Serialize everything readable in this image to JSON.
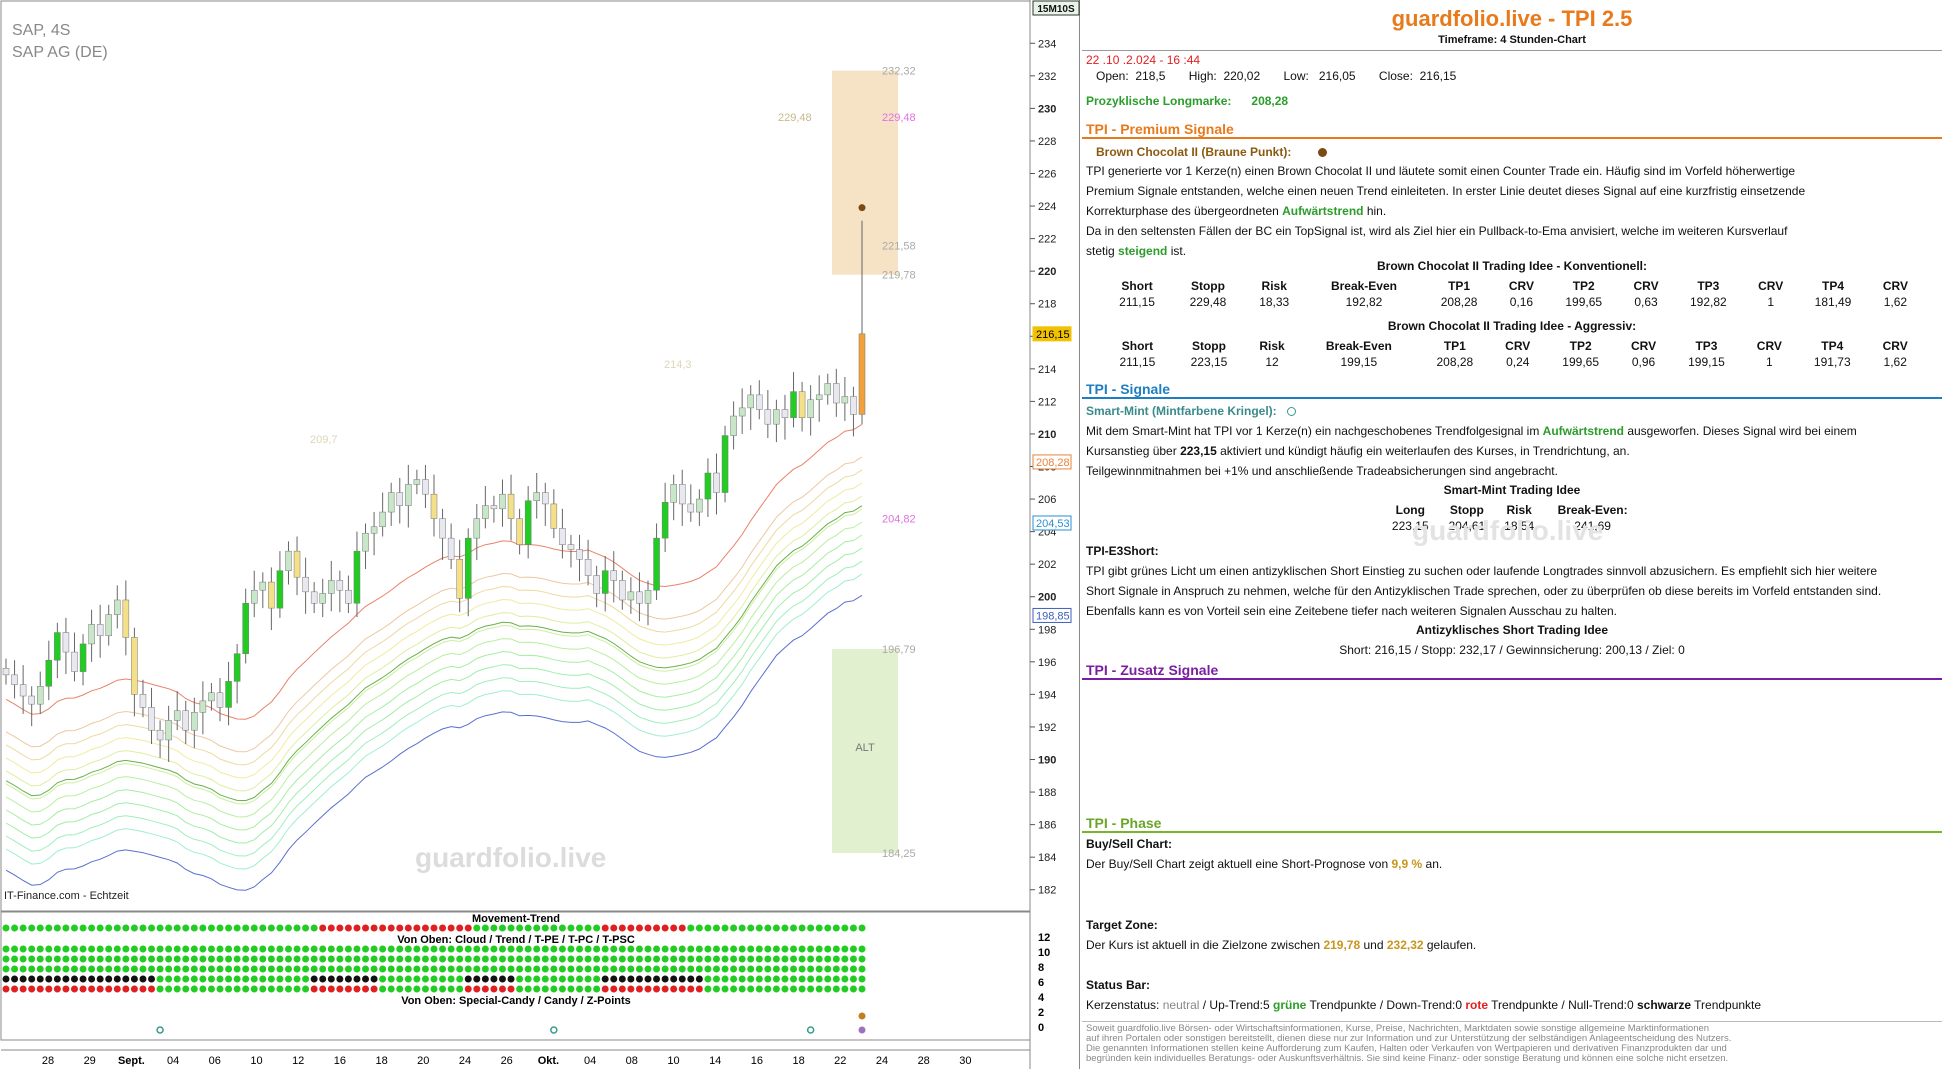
{
  "chart_header": {
    "symbol": "SAP, 4S",
    "name": "SAP AG (DE)",
    "timeframe_badge": "15M10S",
    "source": "IT-Finance.com - Echtzeit",
    "watermark": "guardfolio.live",
    "footer_watermark": "guardfolio.live"
  },
  "colors": {
    "brand": "#e87a1c",
    "premium_line": "#e87a1c",
    "signale_line": "#1f7ec2",
    "zusatz_line": "#7b1fa2",
    "phase_line": "#7ab32e",
    "bull": "#22cc22",
    "bear_candle": "#f5e08a",
    "price_label": "#f2c200"
  },
  "chart_data": {
    "type": "candlestick",
    "ylim": [
      181,
      235
    ],
    "y_ticks": [
      182,
      184,
      186,
      188,
      190,
      192,
      194,
      196,
      198,
      200,
      202,
      204,
      206,
      208,
      210,
      212,
      214,
      216,
      218,
      220,
      222,
      224,
      226,
      228,
      230,
      232,
      234
    ],
    "x_ticks": [
      "28",
      "29",
      "Sept.",
      "04",
      "06",
      "10",
      "12",
      "16",
      "18",
      "20",
      "24",
      "26",
      "Okt.",
      "04",
      "08",
      "10",
      "14",
      "16",
      "18",
      "22",
      "24",
      "28",
      "30"
    ],
    "price_labels": [
      {
        "value": 216.15,
        "text": "216,15",
        "color": "#f2c200"
      },
      {
        "value": 208.28,
        "text": "208,28",
        "color": "#e8823a"
      },
      {
        "value": 204.53,
        "text": "204,53",
        "color": "#2a8fd4"
      },
      {
        "value": 198.85,
        "text": "198,85",
        "color": "#3b5fbf"
      }
    ],
    "zone_labels": [
      {
        "value": 232.32,
        "text": "232,32",
        "color": "#aaa"
      },
      {
        "value": 229.48,
        "text": "229,48",
        "color": "#e070e0"
      },
      {
        "value": 221.58,
        "text": "221,58",
        "color": "#aaa"
      },
      {
        "value": 219.78,
        "text": "219,78",
        "color": "#aaa"
      },
      {
        "value": 204.82,
        "text": "204,82",
        "color": "#e070e0"
      },
      {
        "value": 196.79,
        "text": "196,79",
        "color": "#aaa"
      },
      {
        "value": 184.25,
        "text": "184,25",
        "color": "#aaa"
      }
    ],
    "faint_labels": [
      {
        "value": 229.48,
        "text": "229,48"
      },
      {
        "value": 214.3,
        "text": "214,3"
      },
      {
        "value": 209.7,
        "text": "209,7"
      }
    ],
    "zones": {
      "target_top": 232.32,
      "target_bottom": 219.78,
      "alt_top": 196.79,
      "alt_bottom": 184.25,
      "alt_label": "ALT"
    },
    "closes": [
      195.2,
      194.6,
      193.9,
      193.4,
      194.5,
      196.1,
      197.8,
      196.6,
      195.4,
      197.1,
      198.3,
      197.6,
      198.9,
      199.8,
      197.5,
      194.0,
      193.2,
      191.8,
      191.2,
      192.4,
      193.0,
      191.8,
      192.9,
      193.6,
      194.1,
      193.2,
      194.8,
      196.5,
      199.6,
      200.4,
      200.9,
      199.3,
      201.6,
      202.8,
      201.2,
      200.3,
      199.6,
      200.2,
      201.0,
      200.4,
      199.6,
      202.8,
      203.9,
      204.3,
      205.2,
      206.4,
      205.6,
      206.9,
      207.2,
      206.3,
      204.8,
      203.6,
      202.3,
      199.9,
      203.6,
      204.8,
      205.6,
      205.4,
      206.3,
      204.8,
      203.2,
      205.9,
      206.4,
      205.7,
      204.2,
      203.2,
      202.9,
      202.3,
      201.3,
      200.2,
      201.6,
      201.0,
      199.8,
      200.3,
      199.6,
      200.4,
      203.6,
      205.8,
      206.9,
      205.7,
      205.2,
      206.0,
      207.6,
      206.4,
      209.9,
      211.1,
      211.6,
      212.4,
      211.5,
      210.6,
      211.5,
      211.0,
      212.6,
      211.0,
      212.1,
      212.4,
      213.1,
      211.9,
      212.3,
      211.2,
      216.15
    ],
    "premium_marker": {
      "value": 223.9,
      "text": "Brown Chocolat II"
    }
  },
  "movement_trend": {
    "title": "Movement-Trend",
    "subtitle1": "Von Oben: Cloud / Trend / T-PE / T-PC / T-PSC",
    "subtitle2": "Von Oben: Special-Candy / Candy / Z-Points",
    "right_ticks": [
      "12",
      "10",
      "8",
      "6",
      "4",
      "2",
      "0"
    ]
  },
  "info": {
    "brand": "guardfolio.live - TPI 2.5",
    "timeframe": "Timeframe: 4 Stunden-Chart",
    "datetime": "22 .10 .2.024  -  16 :44",
    "ohlc": {
      "open_label": "Open:",
      "open": "218,5",
      "high_label": "High:",
      "high": "220,02",
      "low_label": "Low:",
      "low": "216,05",
      "close_label": "Close:",
      "close": "216,15"
    },
    "longmarke_label": "Prozyklische Longmarke:",
    "longmarke_value": "208,28",
    "premium": {
      "header": "TPI - Premium Signale",
      "signal_name": "Brown Chocolat II (Braune Punkt):",
      "p1": "TPI generierte vor 1  Kerze(n) einen Brown Chocolat II und läutete somit einen Counter Trade ein. Häufig sind im Vorfeld höherwertige",
      "p2": "Premium Signale entstanden, welche einen neuen Trend einleiteten. In erster Linie deutet dieses Signal auf eine kurzfristig einsetzende",
      "p3a": "Korrekturphase des übergeordneten ",
      "p3b": "Aufwärtstrend",
      "p3c": "  hin.",
      "p4": "Da in den seltensten Fällen der BC ein TopSignal ist, wird als Ziel hier ein Pullback-to-Ema anvisiert, welche im weiteren Kursverlauf",
      "p5a": "stetig ",
      "p5b": "steigend",
      "p5c": " ist.",
      "table_headers": [
        "Short",
        "Stopp",
        "Risk",
        "Break-Even",
        "TP1",
        "CRV",
        "TP2",
        "CRV",
        "TP3",
        "CRV",
        "TP4",
        "CRV"
      ],
      "conv_title": "Brown Chocolat II Trading Idee - Konventionell:",
      "conv_row": [
        "211,15",
        "229,48",
        "18,33",
        "192,82",
        "208,28",
        "0,16",
        "199,65",
        "0,63",
        "192,82",
        "1",
        "181,49",
        "1,62"
      ],
      "aggr_title": "Brown Chocolat II Trading Idee - Aggressiv:",
      "aggr_row": [
        "211,15",
        "223,15",
        "12",
        "199,15",
        "208,28",
        "0,24",
        "199,65",
        "0,96",
        "199,15",
        "1",
        "191,73",
        "1,62"
      ]
    },
    "signale": {
      "header": "TPI - Signale",
      "signal_name": "Smart-Mint (Mintfarbene Kringel):",
      "p1a": "Mit dem Smart-Mint hat TPI vor 1  Kerze(n) ein nachgeschobenes Trendfolgesignal im  ",
      "p1b": "Aufwärtstrend",
      "p1c": "  ausgeworfen. Dieses Signal wird bei einem",
      "p2a": "Kursanstieg über   ",
      "p2b": "223,15",
      "p2c": "    aktiviert und kündigt häufig ein weiterlaufen des Kurses, in Trendrichtung, an.",
      "p3": "Teilgewinnmitnahmen bei +1% und anschließende Tradeabsicherungen sind angebracht.",
      "mint_title": "Smart-Mint Trading Idee",
      "mint_headers": [
        "Long",
        "Stopp",
        "Risk",
        "Break-Even:"
      ],
      "mint_row": [
        "223,15",
        "204,61",
        "18,54",
        "241,69"
      ],
      "e3_title": "TPI-E3Short:",
      "e3_p1": "TPI gibt grünes Licht um einen antizyklischen Short Einstieg zu suchen oder laufende Longtrades sinnvoll abzusichern. Es empfiehlt sich hier weitere",
      "e3_p2": "Short Signale in Anspruch zu nehmen, welche für den Antizyklischen Trade sprechen, oder zu überprüfen ob diese bereits im Vorfeld entstanden sind.",
      "e3_p3": "Ebenfalls kann es von Vorteil sein eine Zeitebene tiefer nach weiteren Signalen Ausschau zu halten.",
      "anti_title": "Antizyklisches Short Trading Idee",
      "anti_row": "Short:   216,15    / Stopp:    232,17     / Gewinnsicherung:    200,13    / Ziel:       0"
    },
    "zusatz": {
      "header": "TPI - Zusatz Signale"
    },
    "phase": {
      "header": "TPI - Phase",
      "bs_title": "Buy/Sell Chart:",
      "bs_text_a": "Der Buy/Sell Chart zeigt aktuell eine Short-Prognose von  ",
      "bs_pct": "9,9 %",
      "bs_text_c": "  an.",
      "tz_title": "Target Zone:",
      "tz_a": "Der Kurs ist aktuell in die Zielzone zwischen    ",
      "tz_low": "219,78",
      "tz_mid": "     und      ",
      "tz_high": "232,32",
      "tz_c": "     gelaufen.",
      "sb_title": "Status Bar:",
      "sb_a": "Kerzenstatus: ",
      "sb_neutral": "neutral",
      "sb_b": "  / Up-Trend:5 ",
      "sb_gruene": "grüne",
      "sb_c": " Trendpunkte  / Down-Trend:0 ",
      "sb_rote": "rote",
      "sb_d": " Trendpunkte  / Null-Trend:0 ",
      "sb_schwarze": "schwarze",
      "sb_e": " Trendpunkte"
    },
    "disclaimer": [
      "Soweit guardfolio.live Börsen- oder Wirtschaftsinformationen, Kurse, Preise, Nachrichten, Marktdaten sowie sonstige allgemeine Marktinformationen",
      "auf ihren Portalen oder sonstigen bereitstellt, dienen diese nur zur Information und zur Unterstützung der selbständigen Anlageentscheidung des Nutzers.",
      "Die genannten Informationen stellen keine Aufforderung zum Kaufen, Halten oder Verkaufen von Wertpapieren und derivativen Finanzprodukten dar und",
      "begründen kein individuelles Beratungs- oder Auskunftsverhältnis. Sie sind keine Finanz- oder sonstige Beratung und können eine solche nicht ersetzen."
    ]
  }
}
